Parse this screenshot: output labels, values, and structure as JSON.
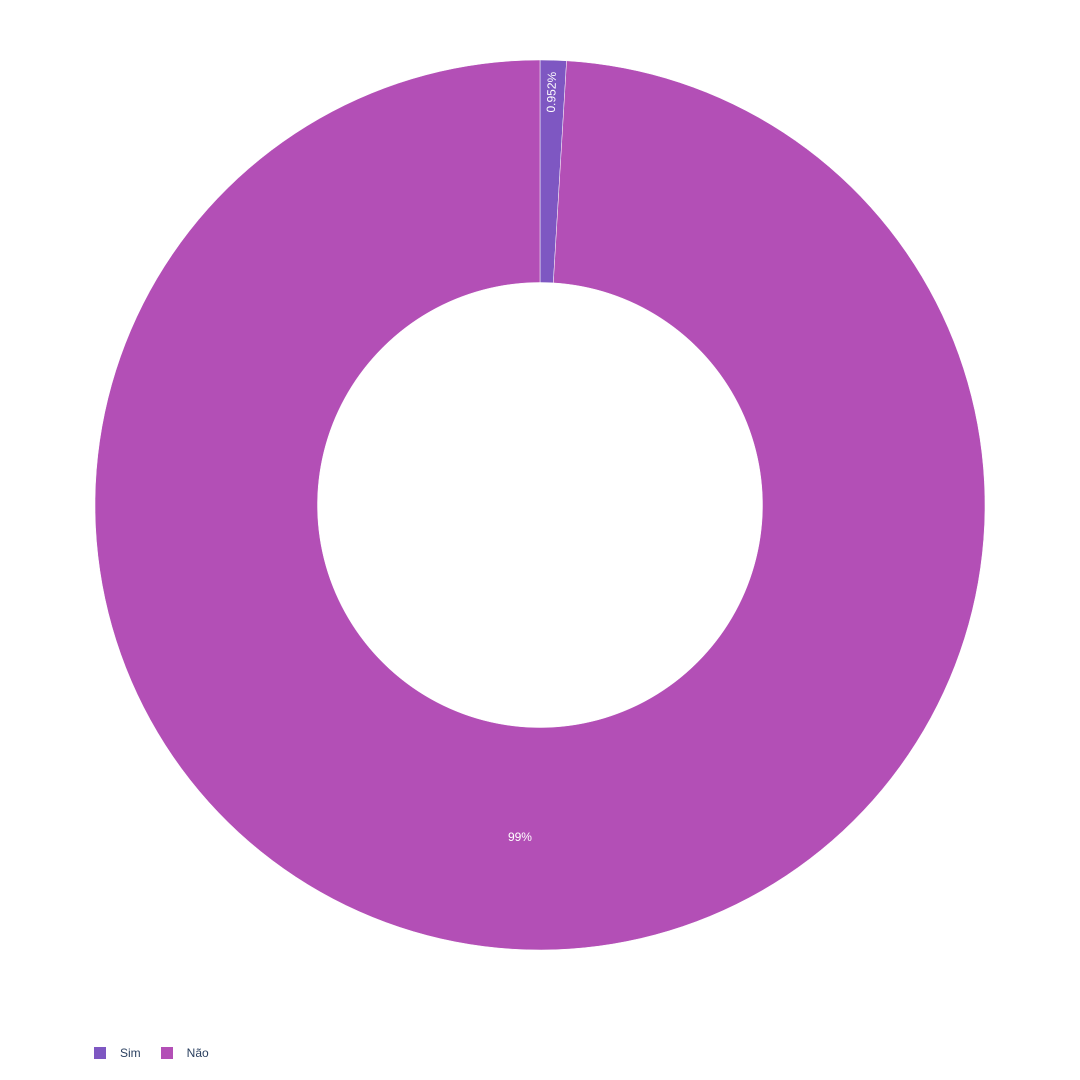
{
  "chart_data": {
    "type": "pie",
    "hole": 0.5,
    "direction": "clockwise",
    "rotation_start": "top",
    "title": "",
    "legend_position": "bottom-left",
    "series": [
      {
        "categories": [
          "Sim",
          "Não"
        ],
        "values": [
          0.952,
          99.048
        ],
        "labels": [
          "0.952%",
          "99%"
        ],
        "colors": [
          "#7e57c2",
          "#b34fb6"
        ]
      }
    ]
  },
  "legend": {
    "items": [
      {
        "label": "Sim",
        "color": "#7e57c2"
      },
      {
        "label": "Não",
        "color": "#b34fb6"
      }
    ]
  }
}
